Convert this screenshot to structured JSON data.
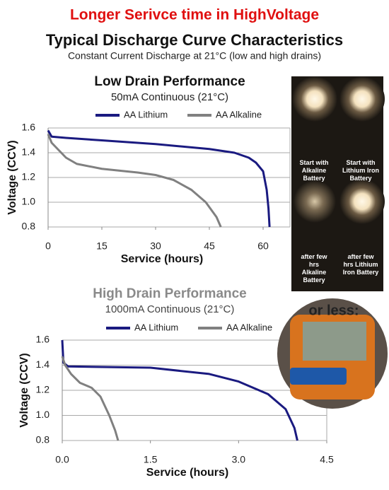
{
  "header": {
    "title": "Longer Serivce time in HighVoltage",
    "heading": "Typical Discharge Curve Characteristics",
    "subheading": "Constant Current Discharge at 21°C (low and high drains)"
  },
  "chart_data": [
    {
      "type": "line",
      "title": "Low Drain Performance",
      "subtitle": "50mA Continuous (21°C)",
      "x_label": "Service (hours)",
      "y_label": "Voltage (CCV)",
      "xlim": [
        0,
        67.5
      ],
      "xticks": [
        0,
        15,
        30,
        45,
        60
      ],
      "ylim": [
        0.8,
        1.6
      ],
      "yticks": [
        1.6,
        1.4,
        1.2,
        {
          "value": 1,
          "label": "1.0"
        },
        0.8
      ],
      "grid": true,
      "series": [
        {
          "name": "AA Lithium",
          "color": "#1a1a80",
          "x": [
            0,
            1,
            5,
            15,
            30,
            45,
            52,
            56,
            58,
            60,
            61,
            61.5,
            61.8
          ],
          "values": [
            1.58,
            1.53,
            1.52,
            1.5,
            1.47,
            1.43,
            1.4,
            1.36,
            1.32,
            1.25,
            1.1,
            0.95,
            0.8
          ]
        },
        {
          "name": "AA Alkaline",
          "color": "#808080",
          "x": [
            0,
            1,
            3,
            5,
            8,
            15,
            25,
            30,
            35,
            40,
            44,
            47,
            48.2
          ],
          "values": [
            1.55,
            1.48,
            1.42,
            1.36,
            1.31,
            1.27,
            1.24,
            1.22,
            1.18,
            1.1,
            1.0,
            0.88,
            0.8
          ]
        }
      ]
    },
    {
      "type": "line",
      "title": "High Drain Performance",
      "subtitle": "1000mA Continuous (21°C)",
      "x_label": "Service (hours)",
      "y_label": "Voltage (CCV)",
      "xlim": [
        0,
        4.5
      ],
      "xticks": [
        {
          "value": 0,
          "label": "0.0"
        },
        1.5,
        {
          "value": 3,
          "label": "3.0"
        },
        4.5
      ],
      "ylim": [
        0.8,
        1.6
      ],
      "yticks": [
        1.6,
        1.4,
        1.2,
        {
          "value": 1,
          "label": "1.0"
        },
        0.8
      ],
      "grid": true,
      "series": [
        {
          "name": "AA Lithium",
          "color": "#1a1a80",
          "x": [
            0,
            0.02,
            0.1,
            1.5,
            2.5,
            3.0,
            3.5,
            3.8,
            3.95,
            4.0
          ],
          "values": [
            1.6,
            1.42,
            1.39,
            1.38,
            1.33,
            1.27,
            1.17,
            1.05,
            0.9,
            0.8
          ]
        },
        {
          "name": "AA Alkaline",
          "color": "#808080",
          "x": [
            0,
            0.05,
            0.15,
            0.3,
            0.5,
            0.65,
            0.8,
            0.9,
            0.95
          ],
          "values": [
            1.47,
            1.4,
            1.33,
            1.26,
            1.22,
            1.15,
            1.0,
            0.88,
            0.8
          ]
        }
      ]
    }
  ],
  "photos": {
    "labels": [
      "Start with Alkaline Battery",
      "Start with Lithium Iron Battery",
      "after few hrs Alkaline Battery",
      "after few hrs Lithium Iron Battery"
    ],
    "meter_text": "or less:"
  }
}
